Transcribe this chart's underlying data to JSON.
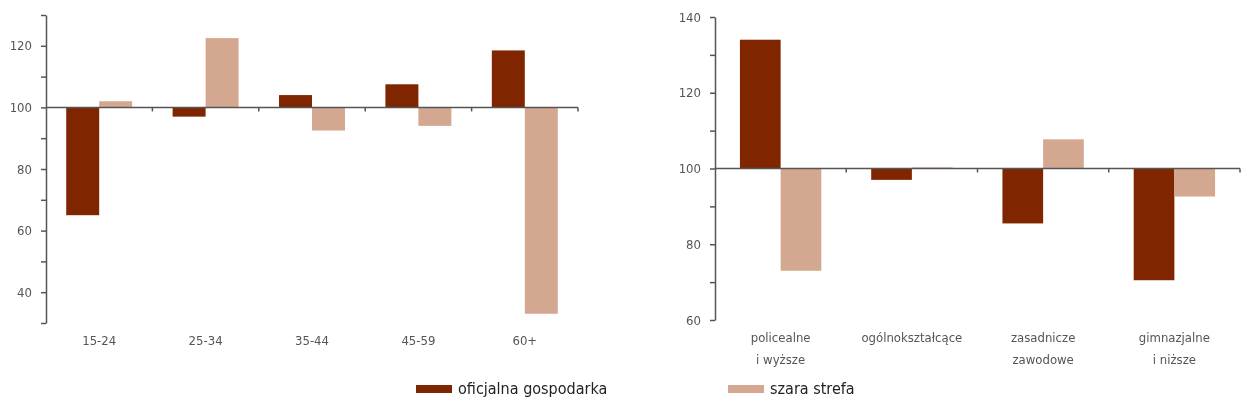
{
  "chart_data": [
    {
      "type": "bar",
      "categories": [
        "15-24",
        "25-34",
        "35-44",
        "45-59",
        "60+"
      ],
      "series": [
        {
          "name": "oficjalna gospodarka",
          "color": "#7f2600",
          "base": [
            100,
            100,
            100,
            100,
            100
          ],
          "values": [
            -35,
            -3,
            4,
            7.5,
            18.5
          ]
        },
        {
          "name": "szara strefa",
          "color": "#d4a890",
          "base": [
            100,
            100,
            100,
            100,
            100
          ],
          "values": [
            2,
            22.5,
            -7.5,
            -6,
            -67
          ]
        }
      ],
      "ylim": [
        30,
        130
      ],
      "yticks": [
        {
          "value": 30,
          "label": null
        },
        40,
        {
          "value": 50,
          "label": null
        },
        60,
        {
          "value": 70,
          "label": null
        },
        80,
        {
          "value": 90,
          "label": null
        },
        100,
        {
          "value": 110,
          "label": null
        },
        120,
        {
          "value": 130,
          "label": null
        }
      ],
      "grid": false,
      "legend": "bottom",
      "ref_lines": [
        {
          "axis": "y",
          "value": 100
        }
      ]
    },
    {
      "type": "bar",
      "categories": [
        "policealne\ni wyższe",
        "ogólnokształcące",
        "zasadnicze\nzawodowe",
        "gimnazjalne\ni niższe"
      ],
      "series": [
        {
          "color": "#7f2600",
          "base": [
            100,
            100,
            100,
            100
          ],
          "values": [
            34,
            -3,
            -14.5,
            -29.5
          ]
        },
        {
          "color": "#d4a890",
          "base": [
            100,
            100,
            100,
            100
          ],
          "values": [
            -27,
            0.3,
            7.7,
            -7.4
          ]
        }
      ],
      "ylim": [
        60,
        140
      ],
      "yticks": [
        60,
        {
          "value": 70,
          "label": null
        },
        80,
        {
          "value": 90,
          "label": null
        },
        100,
        {
          "value": 110,
          "label": null
        },
        120,
        {
          "value": 130,
          "label": null
        },
        140
      ],
      "grid": false,
      "ref_lines": [
        {
          "axis": "y",
          "value": 100
        }
      ]
    }
  ]
}
